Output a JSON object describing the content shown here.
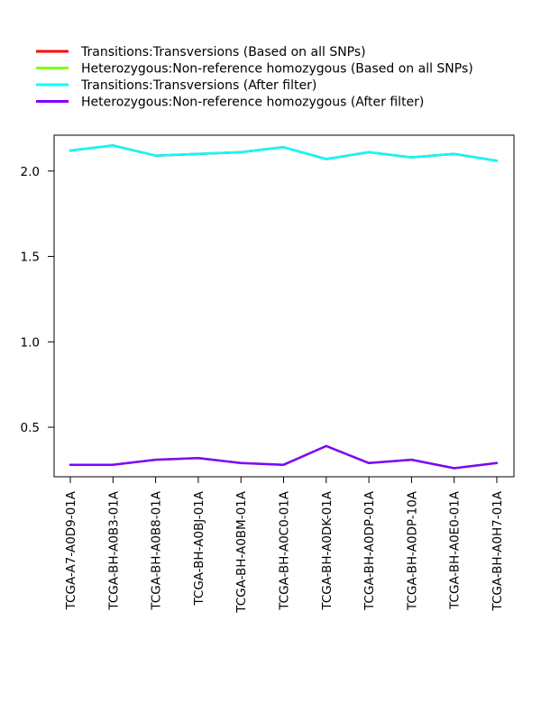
{
  "chart_data": {
    "type": "line",
    "categories": [
      "TCGA-A7-A0D9-01A",
      "TCGA-BH-A0B3-01A",
      "TCGA-BH-A0B8-01A",
      "TCGA-BH-A0BJ-01A",
      "TCGA-BH-A0BM-01A",
      "TCGA-BH-A0C0-01A",
      "TCGA-BH-A0DK-01A",
      "TCGA-BH-A0DP-01A",
      "TCGA-BH-A0DP-10A",
      "TCGA-BH-A0E0-01A",
      "TCGA-BH-A0H7-01A"
    ],
    "series": [
      {
        "name": "Transitions:Transversions (Based on all SNPs)",
        "color": "#ff0000",
        "values": [
          2.12,
          2.15,
          2.09,
          2.1,
          2.11,
          2.14,
          2.07,
          2.11,
          2.08,
          2.1,
          2.06
        ]
      },
      {
        "name": "Heterozygous:Non-reference homozygous (Based on all SNPs)",
        "color": "#80ff00",
        "values": [
          0.28,
          0.28,
          0.31,
          0.32,
          0.29,
          0.28,
          0.39,
          0.29,
          0.31,
          0.26,
          0.29
        ]
      },
      {
        "name": "Transitions:Transversions (After filter)",
        "color": "#00ffff",
        "values": [
          2.12,
          2.15,
          2.09,
          2.1,
          2.11,
          2.14,
          2.07,
          2.11,
          2.08,
          2.1,
          2.06
        ]
      },
      {
        "name": "Heterozygous:Non-reference homozygous (After filter)",
        "color": "#8000ff",
        "values": [
          0.28,
          0.28,
          0.31,
          0.32,
          0.29,
          0.28,
          0.39,
          0.29,
          0.31,
          0.26,
          0.29
        ]
      }
    ],
    "ylim": [
      0.21,
      2.21
    ],
    "yticks": [
      0.5,
      1.0,
      1.5,
      2.0
    ],
    "ytick_labels": [
      "0.5",
      "1.0",
      "1.5",
      "2.0"
    ],
    "title": "",
    "xlabel": "",
    "ylabel": "",
    "grid": false,
    "legend_position": "top-left"
  }
}
